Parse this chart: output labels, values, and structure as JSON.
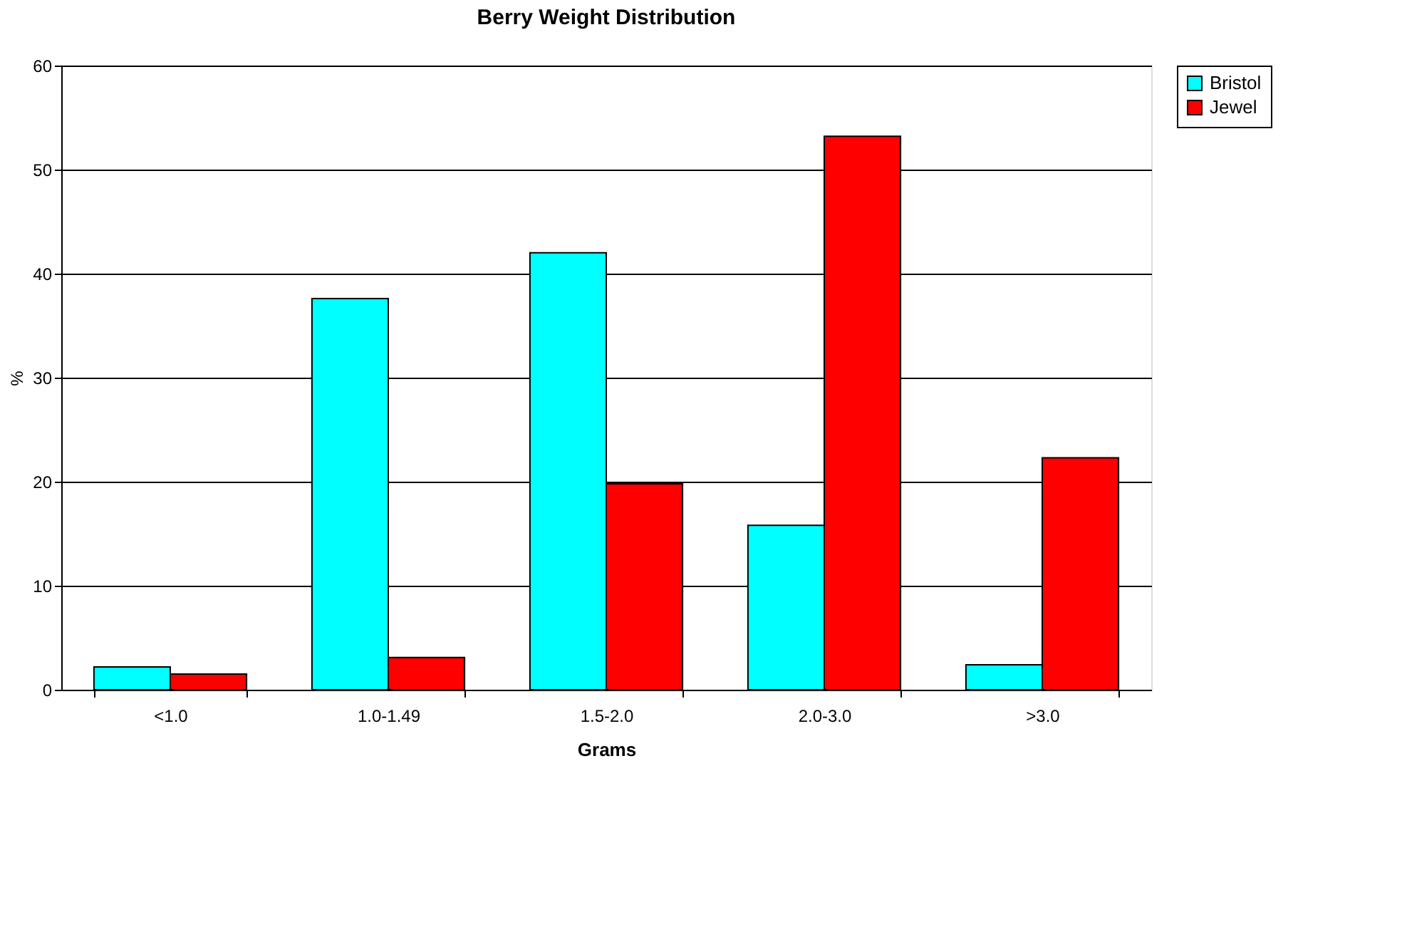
{
  "chart_data": {
    "type": "bar",
    "title": "Berry Weight Distribution",
    "xlabel": "Grams",
    "ylabel": "%",
    "categories": [
      "<1.0",
      "1.0-1.49",
      "1.5-2.0",
      "2.0-3.0",
      ">3.0"
    ],
    "series": [
      {
        "name": "Bristol",
        "color": "#00ffff",
        "values": [
          2.2,
          37.6,
          42.0,
          15.8,
          2.4
        ]
      },
      {
        "name": "Jewel",
        "color": "#ff0000",
        "values": [
          1.5,
          3.1,
          19.8,
          53.2,
          22.3
        ]
      }
    ],
    "ylim": [
      0,
      60
    ],
    "yticks": [
      0,
      10,
      20,
      30,
      40,
      50,
      60
    ],
    "grid": "y",
    "legend": "right"
  }
}
